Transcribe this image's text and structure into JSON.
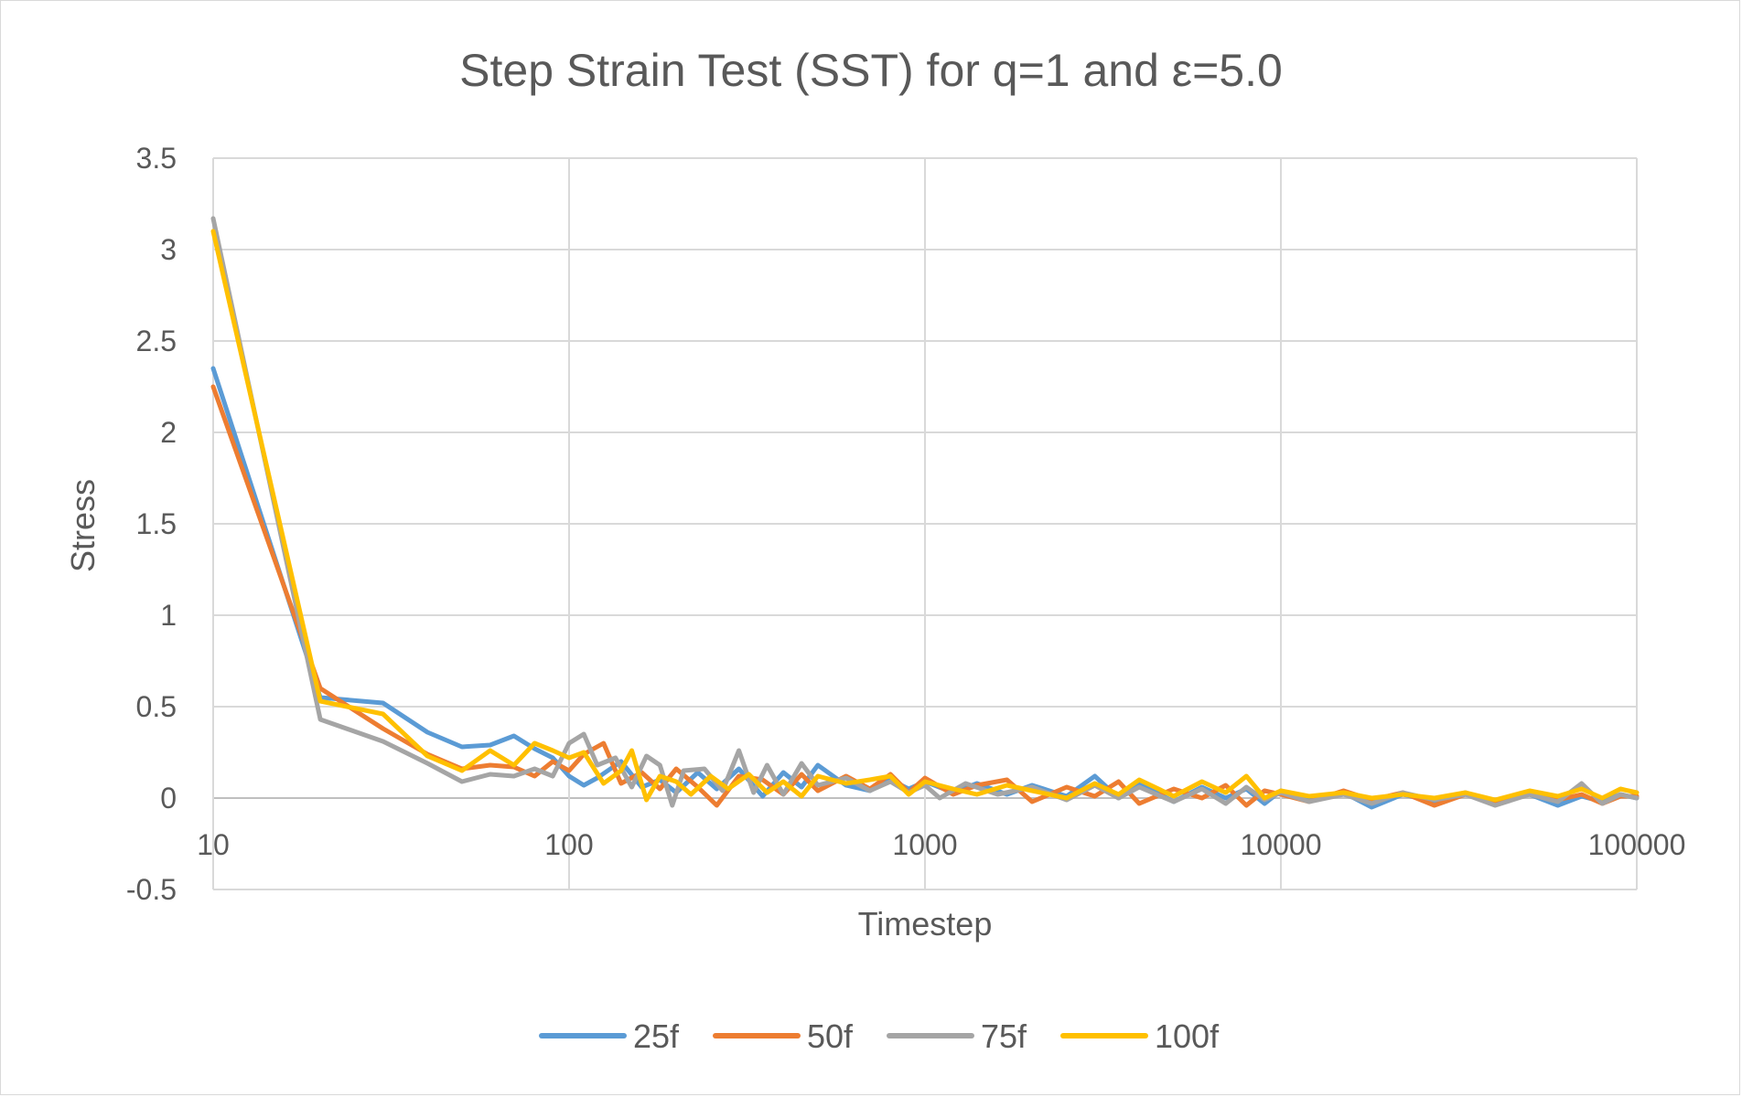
{
  "chart_data": {
    "type": "line",
    "title": "Step Strain Test (SST) for q=1 and ε=5.0",
    "xlabel": "Timestep",
    "ylabel": "Stress",
    "x_scale": "log",
    "xlim": [
      10,
      100000
    ],
    "ylim": [
      -0.5,
      3.5
    ],
    "x_ticks": [
      "10",
      "100",
      "1000",
      "10000",
      "100000"
    ],
    "y_ticks": [
      "3.5",
      "3",
      "2.5",
      "2",
      "1.5",
      "1",
      "0.5",
      "0",
      "-0.5"
    ],
    "grid": true,
    "legend_position": "bottom",
    "series": [
      {
        "name": "25f",
        "color": "#5b9bd5",
        "points": [
          [
            10,
            2.35
          ],
          [
            20,
            0.55
          ],
          [
            30,
            0.52
          ],
          [
            40,
            0.36
          ],
          [
            50,
            0.28
          ],
          [
            60,
            0.29
          ],
          [
            70,
            0.34
          ],
          [
            80,
            0.27
          ],
          [
            90,
            0.22
          ],
          [
            100,
            0.12
          ],
          [
            110,
            0.07
          ],
          [
            120,
            0.11
          ],
          [
            140,
            0.2
          ],
          [
            160,
            0.06
          ],
          [
            180,
            0.1
          ],
          [
            200,
            0.03
          ],
          [
            230,
            0.14
          ],
          [
            260,
            0.05
          ],
          [
            300,
            0.16
          ],
          [
            350,
            0.01
          ],
          [
            400,
            0.14
          ],
          [
            450,
            0.06
          ],
          [
            500,
            0.18
          ],
          [
            600,
            0.07
          ],
          [
            700,
            0.04
          ],
          [
            800,
            0.1
          ],
          [
            900,
            0.05
          ],
          [
            1000,
            0.09
          ],
          [
            1200,
            0.03
          ],
          [
            1400,
            0.08
          ],
          [
            1700,
            0.02
          ],
          [
            2000,
            0.07
          ],
          [
            2500,
            0.01
          ],
          [
            3000,
            0.12
          ],
          [
            3500,
            0.0
          ],
          [
            4000,
            0.08
          ],
          [
            5000,
            -0.02
          ],
          [
            6000,
            0.06
          ],
          [
            7000,
            0.0
          ],
          [
            8000,
            0.05
          ],
          [
            9000,
            -0.03
          ],
          [
            10000,
            0.04
          ],
          [
            12000,
            -0.01
          ],
          [
            15000,
            0.03
          ],
          [
            18000,
            -0.05
          ],
          [
            22000,
            0.02
          ],
          [
            27000,
            -0.02
          ],
          [
            33000,
            0.03
          ],
          [
            40000,
            -0.03
          ],
          [
            50000,
            0.02
          ],
          [
            60000,
            -0.04
          ],
          [
            70000,
            0.01
          ],
          [
            80000,
            -0.02
          ],
          [
            90000,
            0.02
          ],
          [
            100000,
            0.0
          ]
        ]
      },
      {
        "name": "50f",
        "color": "#ed7d31",
        "points": [
          [
            10,
            2.25
          ],
          [
            20,
            0.6
          ],
          [
            30,
            0.38
          ],
          [
            40,
            0.24
          ],
          [
            50,
            0.16
          ],
          [
            60,
            0.18
          ],
          [
            70,
            0.17
          ],
          [
            80,
            0.12
          ],
          [
            90,
            0.2
          ],
          [
            100,
            0.15
          ],
          [
            110,
            0.24
          ],
          [
            125,
            0.3
          ],
          [
            140,
            0.08
          ],
          [
            160,
            0.14
          ],
          [
            180,
            0.05
          ],
          [
            200,
            0.16
          ],
          [
            230,
            0.06
          ],
          [
            260,
            -0.04
          ],
          [
            300,
            0.12
          ],
          [
            350,
            0.1
          ],
          [
            400,
            0.02
          ],
          [
            450,
            0.13
          ],
          [
            500,
            0.04
          ],
          [
            600,
            0.12
          ],
          [
            700,
            0.05
          ],
          [
            800,
            0.13
          ],
          [
            900,
            0.03
          ],
          [
            1000,
            0.11
          ],
          [
            1200,
            0.02
          ],
          [
            1400,
            0.07
          ],
          [
            1700,
            0.1
          ],
          [
            2000,
            -0.02
          ],
          [
            2500,
            0.06
          ],
          [
            3000,
            0.01
          ],
          [
            3500,
            0.09
          ],
          [
            4000,
            -0.03
          ],
          [
            5000,
            0.05
          ],
          [
            6000,
            0.0
          ],
          [
            7000,
            0.07
          ],
          [
            8000,
            -0.04
          ],
          [
            9000,
            0.04
          ],
          [
            10000,
            0.02
          ],
          [
            12000,
            -0.02
          ],
          [
            15000,
            0.04
          ],
          [
            18000,
            -0.01
          ],
          [
            22000,
            0.03
          ],
          [
            27000,
            -0.04
          ],
          [
            33000,
            0.02
          ],
          [
            40000,
            -0.02
          ],
          [
            50000,
            0.03
          ],
          [
            60000,
            -0.01
          ],
          [
            70000,
            0.02
          ],
          [
            80000,
            -0.03
          ],
          [
            90000,
            0.01
          ],
          [
            100000,
            0.01
          ]
        ]
      },
      {
        "name": "75f",
        "color": "#a5a5a5",
        "points": [
          [
            10,
            3.17
          ],
          [
            20,
            0.43
          ],
          [
            30,
            0.31
          ],
          [
            40,
            0.19
          ],
          [
            50,
            0.09
          ],
          [
            60,
            0.13
          ],
          [
            70,
            0.12
          ],
          [
            80,
            0.16
          ],
          [
            90,
            0.12
          ],
          [
            100,
            0.3
          ],
          [
            110,
            0.35
          ],
          [
            120,
            0.18
          ],
          [
            135,
            0.22
          ],
          [
            150,
            0.06
          ],
          [
            165,
            0.23
          ],
          [
            180,
            0.18
          ],
          [
            195,
            -0.04
          ],
          [
            210,
            0.15
          ],
          [
            240,
            0.16
          ],
          [
            270,
            0.04
          ],
          [
            300,
            0.26
          ],
          [
            330,
            0.03
          ],
          [
            360,
            0.18
          ],
          [
            400,
            0.02
          ],
          [
            450,
            0.19
          ],
          [
            500,
            0.07
          ],
          [
            600,
            0.11
          ],
          [
            700,
            0.04
          ],
          [
            800,
            0.09
          ],
          [
            900,
            0.03
          ],
          [
            1000,
            0.07
          ],
          [
            1100,
            0.0
          ],
          [
            1300,
            0.08
          ],
          [
            1600,
            0.02
          ],
          [
            2000,
            0.06
          ],
          [
            2500,
            -0.01
          ],
          [
            3000,
            0.07
          ],
          [
            3500,
            0.0
          ],
          [
            4000,
            0.06
          ],
          [
            5000,
            -0.02
          ],
          [
            6000,
            0.05
          ],
          [
            7000,
            -0.03
          ],
          [
            8000,
            0.06
          ],
          [
            9000,
            -0.01
          ],
          [
            10000,
            0.03
          ],
          [
            12000,
            -0.02
          ],
          [
            15000,
            0.02
          ],
          [
            18000,
            -0.03
          ],
          [
            22000,
            0.03
          ],
          [
            27000,
            -0.01
          ],
          [
            33000,
            0.02
          ],
          [
            40000,
            -0.04
          ],
          [
            50000,
            0.02
          ],
          [
            60000,
            -0.02
          ],
          [
            70000,
            0.08
          ],
          [
            80000,
            -0.03
          ],
          [
            90000,
            0.02
          ],
          [
            100000,
            0.0
          ]
        ]
      },
      {
        "name": "100f",
        "color": "#ffc000",
        "points": [
          [
            10,
            3.1
          ],
          [
            20,
            0.53
          ],
          [
            30,
            0.46
          ],
          [
            40,
            0.23
          ],
          [
            50,
            0.15
          ],
          [
            60,
            0.26
          ],
          [
            70,
            0.18
          ],
          [
            80,
            0.3
          ],
          [
            90,
            0.26
          ],
          [
            100,
            0.22
          ],
          [
            110,
            0.25
          ],
          [
            125,
            0.08
          ],
          [
            140,
            0.15
          ],
          [
            150,
            0.26
          ],
          [
            165,
            -0.01
          ],
          [
            180,
            0.12
          ],
          [
            200,
            0.09
          ],
          [
            220,
            0.02
          ],
          [
            250,
            0.12
          ],
          [
            280,
            0.05
          ],
          [
            320,
            0.13
          ],
          [
            360,
            0.03
          ],
          [
            400,
            0.09
          ],
          [
            450,
            0.01
          ],
          [
            500,
            0.12
          ],
          [
            600,
            0.08
          ],
          [
            700,
            0.1
          ],
          [
            800,
            0.12
          ],
          [
            900,
            0.02
          ],
          [
            1000,
            0.09
          ],
          [
            1200,
            0.05
          ],
          [
            1400,
            0.02
          ],
          [
            1700,
            0.07
          ],
          [
            2000,
            0.04
          ],
          [
            2500,
            0.0
          ],
          [
            3000,
            0.08
          ],
          [
            3500,
            0.02
          ],
          [
            4000,
            0.1
          ],
          [
            5000,
            0.01
          ],
          [
            6000,
            0.09
          ],
          [
            7000,
            0.03
          ],
          [
            8000,
            0.12
          ],
          [
            9000,
            0.0
          ],
          [
            10000,
            0.04
          ],
          [
            12000,
            0.01
          ],
          [
            15000,
            0.03
          ],
          [
            18000,
            0.0
          ],
          [
            22000,
            0.02
          ],
          [
            27000,
            0.0
          ],
          [
            33000,
            0.03
          ],
          [
            40000,
            -0.01
          ],
          [
            50000,
            0.04
          ],
          [
            60000,
            0.01
          ],
          [
            70000,
            0.05
          ],
          [
            80000,
            0.0
          ],
          [
            90000,
            0.05
          ],
          [
            100000,
            0.03
          ]
        ]
      }
    ]
  }
}
